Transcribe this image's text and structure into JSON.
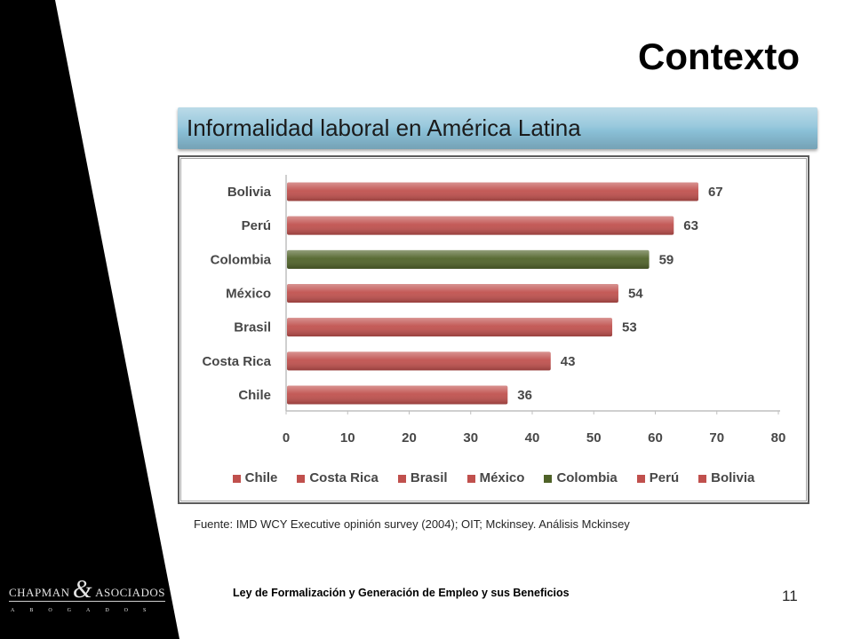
{
  "slide": {
    "title": "Contexto",
    "subtitle": "Informalidad laboral en América Latina",
    "source": "Fuente: IMD WCY Executive opinión survey (2004); OIT; Mckinsey. Análisis Mckinsey",
    "footer": "Ley de Formalización y Generación de Empleo y sus Beneficios",
    "page_number": "11"
  },
  "logo": {
    "name_left": "CHAPMAN",
    "ampersand": "&",
    "name_right": "ASOCIADOS",
    "tagline": "ABOGADOS"
  },
  "colors": {
    "side_band": "#000000",
    "subtitle_bar": "#8bc1d8",
    "bar_default": "#c0504d",
    "bar_highlight": "#4f6228"
  },
  "chart_data": {
    "type": "bar",
    "orientation": "horizontal",
    "categories": [
      "Bolivia",
      "Perú",
      "Colombia",
      "México",
      "Brasil",
      "Costa Rica",
      "Chile"
    ],
    "values": [
      67,
      63,
      59,
      54,
      53,
      43,
      36
    ],
    "bar_colors": [
      "#c0504d",
      "#c0504d",
      "#4f6228",
      "#c0504d",
      "#c0504d",
      "#c0504d",
      "#c0504d"
    ],
    "data_labels": true,
    "xlim": [
      0,
      80
    ],
    "xticks": [
      0,
      10,
      20,
      30,
      40,
      50,
      60,
      70,
      80
    ],
    "grid": false,
    "legend": {
      "position": "bottom",
      "entries": [
        {
          "label": "Chile",
          "color": "#c0504d"
        },
        {
          "label": "Costa Rica",
          "color": "#c0504d"
        },
        {
          "label": "Brasil",
          "color": "#c0504d"
        },
        {
          "label": "México",
          "color": "#c0504d"
        },
        {
          "label": "Colombia",
          "color": "#4f6228"
        },
        {
          "label": "Perú",
          "color": "#c0504d"
        },
        {
          "label": "Bolivia",
          "color": "#c0504d"
        }
      ]
    }
  }
}
